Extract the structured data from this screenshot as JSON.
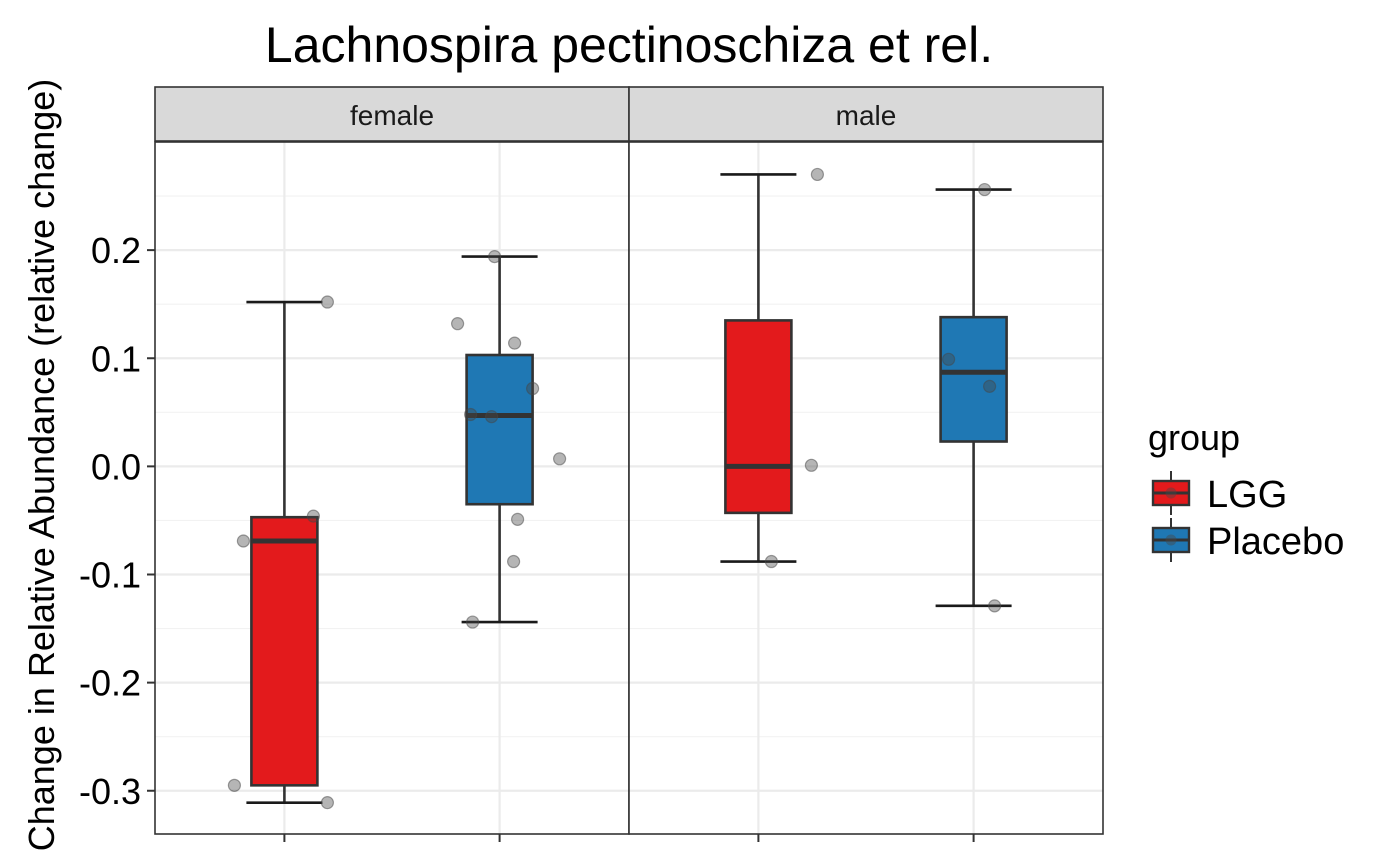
{
  "chart_data": {
    "type": "box",
    "title": "Lachnospira pectinoschiza et rel.",
    "ylabel": "Change in Relative Abundance (relative change)",
    "xlabel": "",
    "ylim": [
      -0.34,
      0.3
    ],
    "yticks": [
      0.2,
      0.1,
      0.0,
      -0.1,
      -0.2,
      -0.3
    ],
    "ytick_labels": [
      "0.2",
      "0.1",
      "0.0",
      "-0.1",
      "-0.2",
      "-0.3"
    ],
    "grid": true,
    "legend": {
      "title": "group",
      "position": "right",
      "entries": [
        {
          "label": "LGG",
          "color": "#E31A1C"
        },
        {
          "label": "Placebo",
          "color": "#1F78B4"
        }
      ]
    },
    "facets": [
      {
        "label": "female",
        "boxes": [
          {
            "group": "LGG",
            "whisker_low": -0.311,
            "q1": -0.295,
            "median": -0.069,
            "q3": -0.047,
            "whisker_high": 0.152,
            "points": [
              0.152,
              -0.046,
              -0.069,
              -0.295,
              -0.311
            ]
          },
          {
            "group": "Placebo",
            "whisker_low": -0.144,
            "q1": -0.035,
            "median": 0.047,
            "q3": 0.103,
            "whisker_high": 0.194,
            "points": [
              0.194,
              0.132,
              0.114,
              0.072,
              0.048,
              0.046,
              0.007,
              -0.049,
              -0.088,
              -0.144
            ]
          }
        ]
      },
      {
        "label": "male",
        "boxes": [
          {
            "group": "LGG",
            "whisker_low": -0.088,
            "q1": -0.043,
            "median": 0.0,
            "q3": 0.135,
            "whisker_high": 0.27,
            "points": [
              0.27,
              0.001,
              -0.088
            ]
          },
          {
            "group": "Placebo",
            "whisker_low": -0.129,
            "q1": 0.023,
            "median": 0.087,
            "q3": 0.138,
            "whisker_high": 0.256,
            "points": [
              0.256,
              0.099,
              0.074,
              -0.129
            ]
          }
        ]
      }
    ]
  }
}
